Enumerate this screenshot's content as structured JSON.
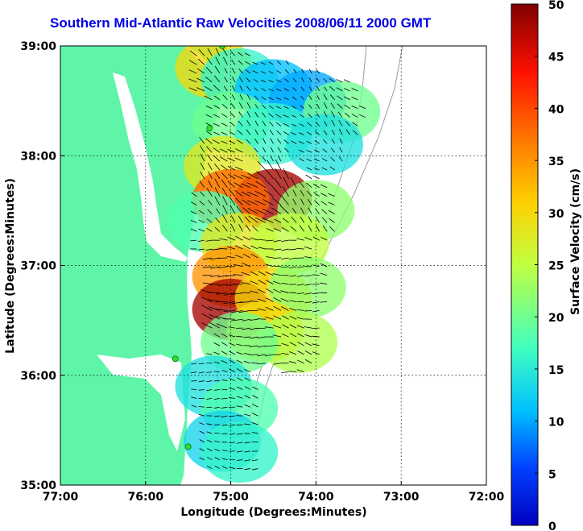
{
  "chart_data": {
    "type": "heatmap",
    "title": "Southern Mid-Atlantic Raw Velocities 2008/06/11 2000 GMT",
    "xlabel": "Longitude (Degrees:Minutes)",
    "ylabel": "Latitude (Degrees:Minutes)",
    "xlim": [
      -77,
      -72
    ],
    "ylim": [
      35,
      39
    ],
    "x_ticks": [
      -77,
      -76,
      -75,
      -74,
      -73,
      -72
    ],
    "x_tick_labels": [
      "77:00",
      "76:00",
      "75:00",
      "74:00",
      "73:00",
      "72:00"
    ],
    "y_ticks": [
      35,
      36,
      37,
      38,
      39
    ],
    "y_tick_labels": [
      "35:00",
      "36:00",
      "37:00",
      "38:00",
      "39:00"
    ],
    "grid": true,
    "colorbar": {
      "label": "Surface Velocity (cm/s)",
      "range": [
        0,
        50
      ],
      "ticks": [
        0,
        5,
        10,
        15,
        20,
        25,
        30,
        35,
        40,
        45,
        50
      ],
      "tick_labels": [
        "0",
        "5",
        "10",
        "15",
        "20",
        "25",
        "30",
        "35",
        "40",
        "45",
        "50"
      ],
      "colormap": "jet"
    },
    "land_color": "#5ef5a8",
    "radar_sites": [
      {
        "lon": -75.1,
        "lat": 39.0
      },
      {
        "lon": -75.25,
        "lat": 38.25
      },
      {
        "lon": -75.65,
        "lat": 36.15
      },
      {
        "lon": -75.5,
        "lat": 35.35
      }
    ],
    "velocity_field": [
      {
        "lon": -75.2,
        "lat": 38.8,
        "speed": 30
      },
      {
        "lon": -74.9,
        "lat": 38.7,
        "speed": 16
      },
      {
        "lon": -74.5,
        "lat": 38.6,
        "speed": 11
      },
      {
        "lon": -74.1,
        "lat": 38.5,
        "speed": 10
      },
      {
        "lon": -73.7,
        "lat": 38.4,
        "speed": 20
      },
      {
        "lon": -75.0,
        "lat": 38.3,
        "speed": 20
      },
      {
        "lon": -74.5,
        "lat": 38.2,
        "speed": 16
      },
      {
        "lon": -73.9,
        "lat": 38.1,
        "speed": 14
      },
      {
        "lon": -75.1,
        "lat": 37.9,
        "speed": 28
      },
      {
        "lon": -74.5,
        "lat": 37.6,
        "speed": 48
      },
      {
        "lon": -75.0,
        "lat": 37.6,
        "speed": 38
      },
      {
        "lon": -74.0,
        "lat": 37.5,
        "speed": 22
      },
      {
        "lon": -75.3,
        "lat": 37.4,
        "speed": 18
      },
      {
        "lon": -74.9,
        "lat": 37.2,
        "speed": 28
      },
      {
        "lon": -74.3,
        "lat": 37.2,
        "speed": 25
      },
      {
        "lon": -75.0,
        "lat": 36.9,
        "speed": 35
      },
      {
        "lon": -75.0,
        "lat": 36.6,
        "speed": 48
      },
      {
        "lon": -74.5,
        "lat": 36.7,
        "speed": 30
      },
      {
        "lon": -74.1,
        "lat": 36.8,
        "speed": 22
      },
      {
        "lon": -74.6,
        "lat": 36.4,
        "speed": 30
      },
      {
        "lon": -74.2,
        "lat": 36.3,
        "speed": 24
      },
      {
        "lon": -74.9,
        "lat": 36.3,
        "speed": 20
      },
      {
        "lon": -75.2,
        "lat": 35.9,
        "speed": 14
      },
      {
        "lon": -74.9,
        "lat": 35.7,
        "speed": 18
      },
      {
        "lon": -75.1,
        "lat": 35.4,
        "speed": 13
      },
      {
        "lon": -74.9,
        "lat": 35.3,
        "speed": 16
      }
    ]
  }
}
